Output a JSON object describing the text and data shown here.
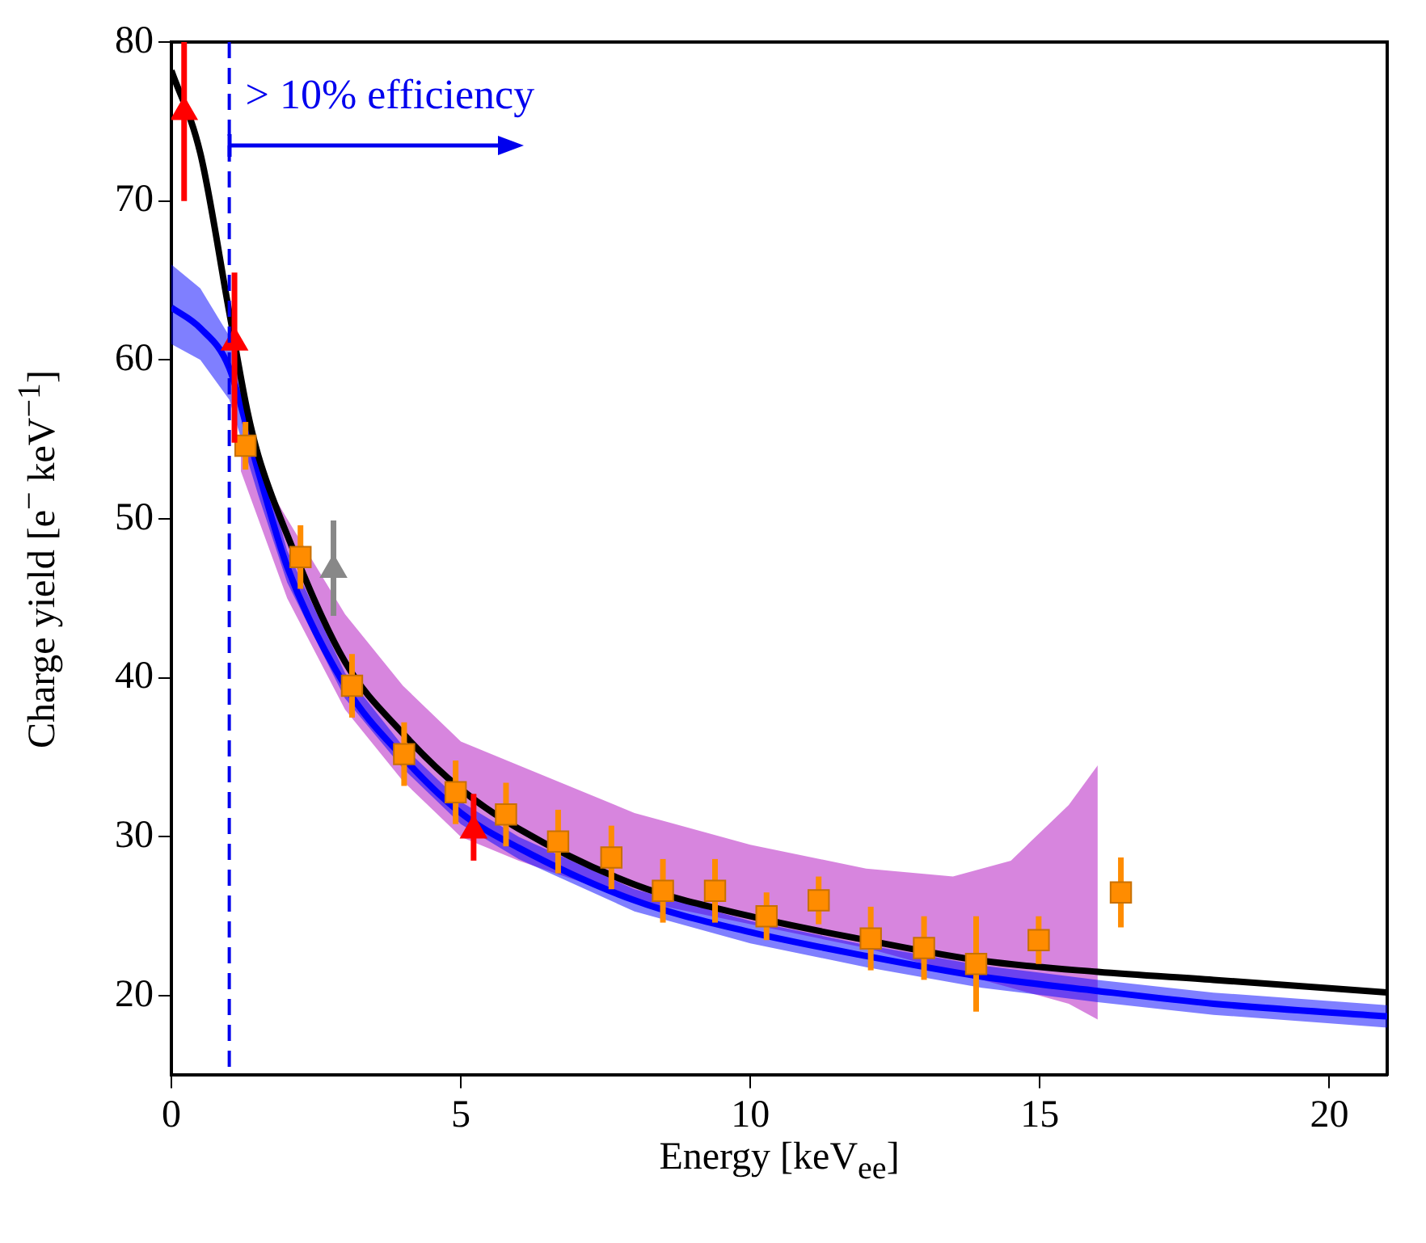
{
  "chart_data": {
    "type": "scatter",
    "xlabel": "Energy [keV$_{ee}$]",
    "ylabel": "Charge yield [e$^{−}$ keV$^{−1}$]",
    "annotations": [
      "> 10% efficiency"
    ],
    "xlim": [
      0,
      21
    ],
    "xticks": [
      0,
      5,
      10,
      15,
      20
    ],
    "ylim": [
      15,
      80
    ],
    "yticks": [
      20,
      30,
      40,
      50,
      60,
      70,
      80
    ],
    "grid": false,
    "legend": false,
    "ref_lines": [
      {
        "axis": "x",
        "value": 1,
        "color": "#0000ee",
        "line_style": "dashed"
      }
    ],
    "series": [
      {
        "type": "line",
        "color": "#d070d8",
        "marker": "none",
        "x": [
          1.2,
          2,
          3,
          4,
          5,
          6,
          8,
          10,
          12,
          13.5,
          14.5,
          15.5,
          16
        ],
        "values": [
          null,
          null,
          null,
          null,
          null,
          null,
          null,
          null,
          null,
          null,
          null,
          null,
          null
        ],
        "lower": [
          53,
          45,
          38,
          33.5,
          30,
          28.5,
          26,
          24.5,
          23,
          21.5,
          20.5,
          19.5,
          18.5
        ],
        "upper": [
          55,
          50,
          44,
          39.5,
          36,
          34.5,
          31.5,
          29.5,
          28,
          27.5,
          28.5,
          32,
          34.5
        ]
      },
      {
        "type": "line",
        "color": "#0000ff",
        "marker": "none",
        "x": [
          0,
          0.5,
          1,
          1.5,
          2,
          3,
          4,
          5,
          6,
          8,
          10,
          12,
          14,
          16,
          18,
          21
        ],
        "values": [
          63.3,
          62,
          59.5,
          53,
          47,
          39.5,
          35,
          31.5,
          29.3,
          26,
          24,
          22.5,
          21.2,
          20.3,
          19.5,
          18.7
        ],
        "lower": [
          61,
          60,
          57.5,
          51.5,
          46,
          38.7,
          34.3,
          30.8,
          28.6,
          25.3,
          23.3,
          21.8,
          20.5,
          19.6,
          18.8,
          18
        ],
        "upper": [
          66,
          64.5,
          61.5,
          54.5,
          48,
          40.3,
          35.7,
          32.2,
          30,
          26.7,
          24.7,
          23.2,
          21.9,
          21,
          20.2,
          19.4
        ]
      },
      {
        "type": "line",
        "color": "#000000",
        "marker": "none",
        "x": [
          0,
          0.5,
          1,
          1.3,
          1.5,
          2,
          3,
          4,
          5,
          6,
          8,
          10,
          12,
          14,
          16,
          18,
          21
        ],
        "values": [
          78.2,
          73,
          63,
          57,
          54,
          49,
          41,
          36.5,
          33,
          30.5,
          27,
          25,
          23.5,
          22.2,
          21.5,
          21,
          20.2
        ]
      },
      {
        "type": "scatter",
        "color": "#ff8c00",
        "marker": "square",
        "x": [
          1.28,
          2.23,
          3.12,
          4.02,
          4.91,
          5.78,
          6.68,
          7.6,
          8.49,
          9.39,
          10.28,
          11.18,
          12.08,
          13,
          13.9,
          14.98,
          16.4
        ],
        "values": [
          54.6,
          47.6,
          39.5,
          35.2,
          32.8,
          31.4,
          29.7,
          28.7,
          26.6,
          26.6,
          25,
          26,
          23.6,
          23,
          22,
          23.5,
          26.5
        ],
        "errors": [
          1.5,
          2,
          2,
          2,
          2,
          2,
          2,
          2,
          2,
          2,
          1.5,
          1.5,
          2,
          2,
          3,
          1.5,
          2.2
        ]
      },
      {
        "type": "scatter",
        "color": "#ff0000",
        "marker": "triangle",
        "x": [
          0.22,
          1.09,
          5.22
        ],
        "values": [
          75.6,
          61.1,
          30.4
        ],
        "errors": [
          [
            70,
            80
          ],
          [
            54.8,
            65.5
          ],
          [
            28.5,
            32.7
          ]
        ]
      },
      {
        "type": "scatter",
        "color": "#888888",
        "marker": "triangle",
        "x": [
          2.8
        ],
        "values": [
          46.8
        ],
        "errors": [
          [
            43.9,
            49.9
          ]
        ]
      }
    ]
  }
}
